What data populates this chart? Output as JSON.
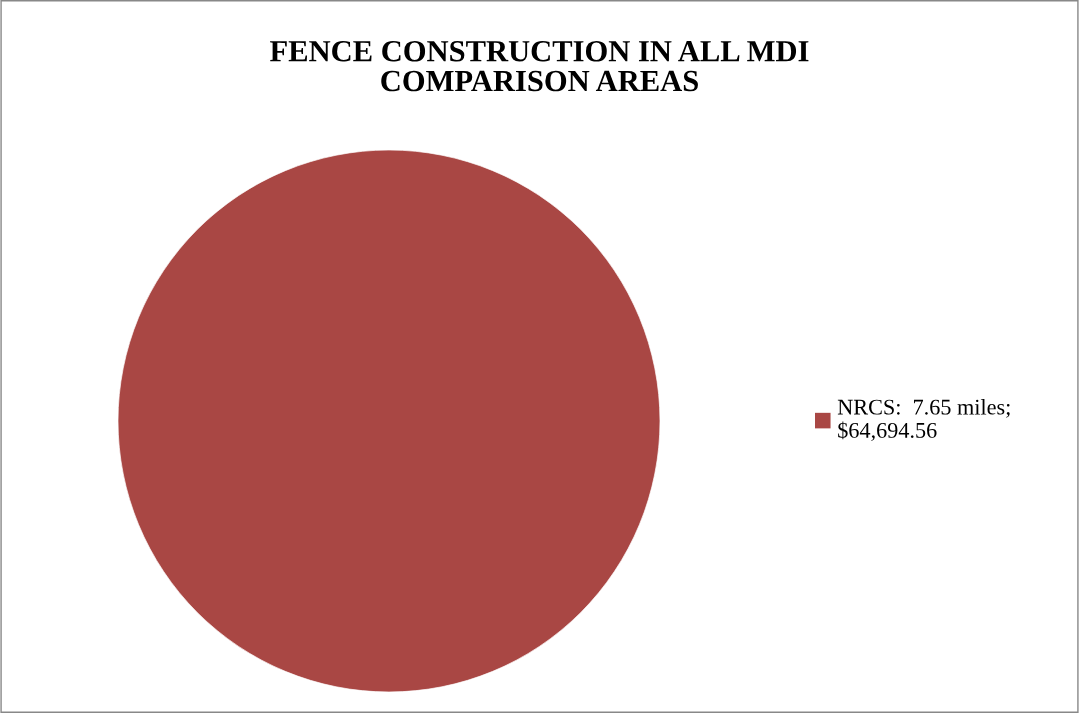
{
  "chart_data": {
    "type": "pie",
    "title": "FENCE CONSTRUCTION IN ALL MDI\nCOMPARISON AREAS",
    "categories": [
      "NRCS:  7.65 miles;\n$64,694.56"
    ],
    "values": [
      100
    ],
    "colors": [
      "#a94744"
    ],
    "legend": "right"
  }
}
